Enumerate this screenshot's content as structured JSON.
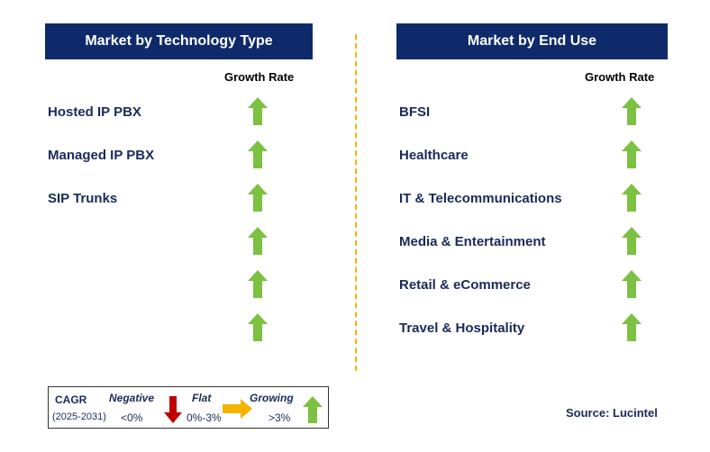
{
  "left_panel": {
    "title": "Market by Technology Type",
    "growth_rate_label": "Growth Rate",
    "items": [
      {
        "label": "Hosted IP PBX",
        "trend": "growing"
      },
      {
        "label": "Managed IP PBX",
        "trend": "growing"
      },
      {
        "label": "SIP Trunks",
        "trend": "growing"
      },
      {
        "label": "",
        "trend": "growing"
      },
      {
        "label": "",
        "trend": "growing"
      },
      {
        "label": "",
        "trend": "growing"
      }
    ]
  },
  "right_panel": {
    "title": "Market by End Use",
    "growth_rate_label": "Growth Rate",
    "items": [
      {
        "label": "BFSI",
        "trend": "growing"
      },
      {
        "label": "Healthcare",
        "trend": "growing"
      },
      {
        "label": "IT & Telecommunications",
        "trend": "growing"
      },
      {
        "label": "Media & Entertainment",
        "trend": "growing"
      },
      {
        "label": "Retail & eCommerce",
        "trend": "growing"
      },
      {
        "label": "Travel & Hospitality",
        "trend": "growing"
      }
    ]
  },
  "legend": {
    "cagr_label": "CAGR",
    "period": "(2025-2031)",
    "negative_label": "Negative",
    "negative_range": "<0%",
    "flat_label": "Flat",
    "flat_range": "0%-3%",
    "growing_label": "Growing",
    "growing_range": ">3%"
  },
  "source": "Source: Lucintel",
  "colors": {
    "header_bg": "#0f2a6b",
    "growing_arrow": "#7cc142",
    "negative_arrow": "#c00000",
    "flat_arrow": "#f5b300",
    "divider": "#f5b300"
  }
}
